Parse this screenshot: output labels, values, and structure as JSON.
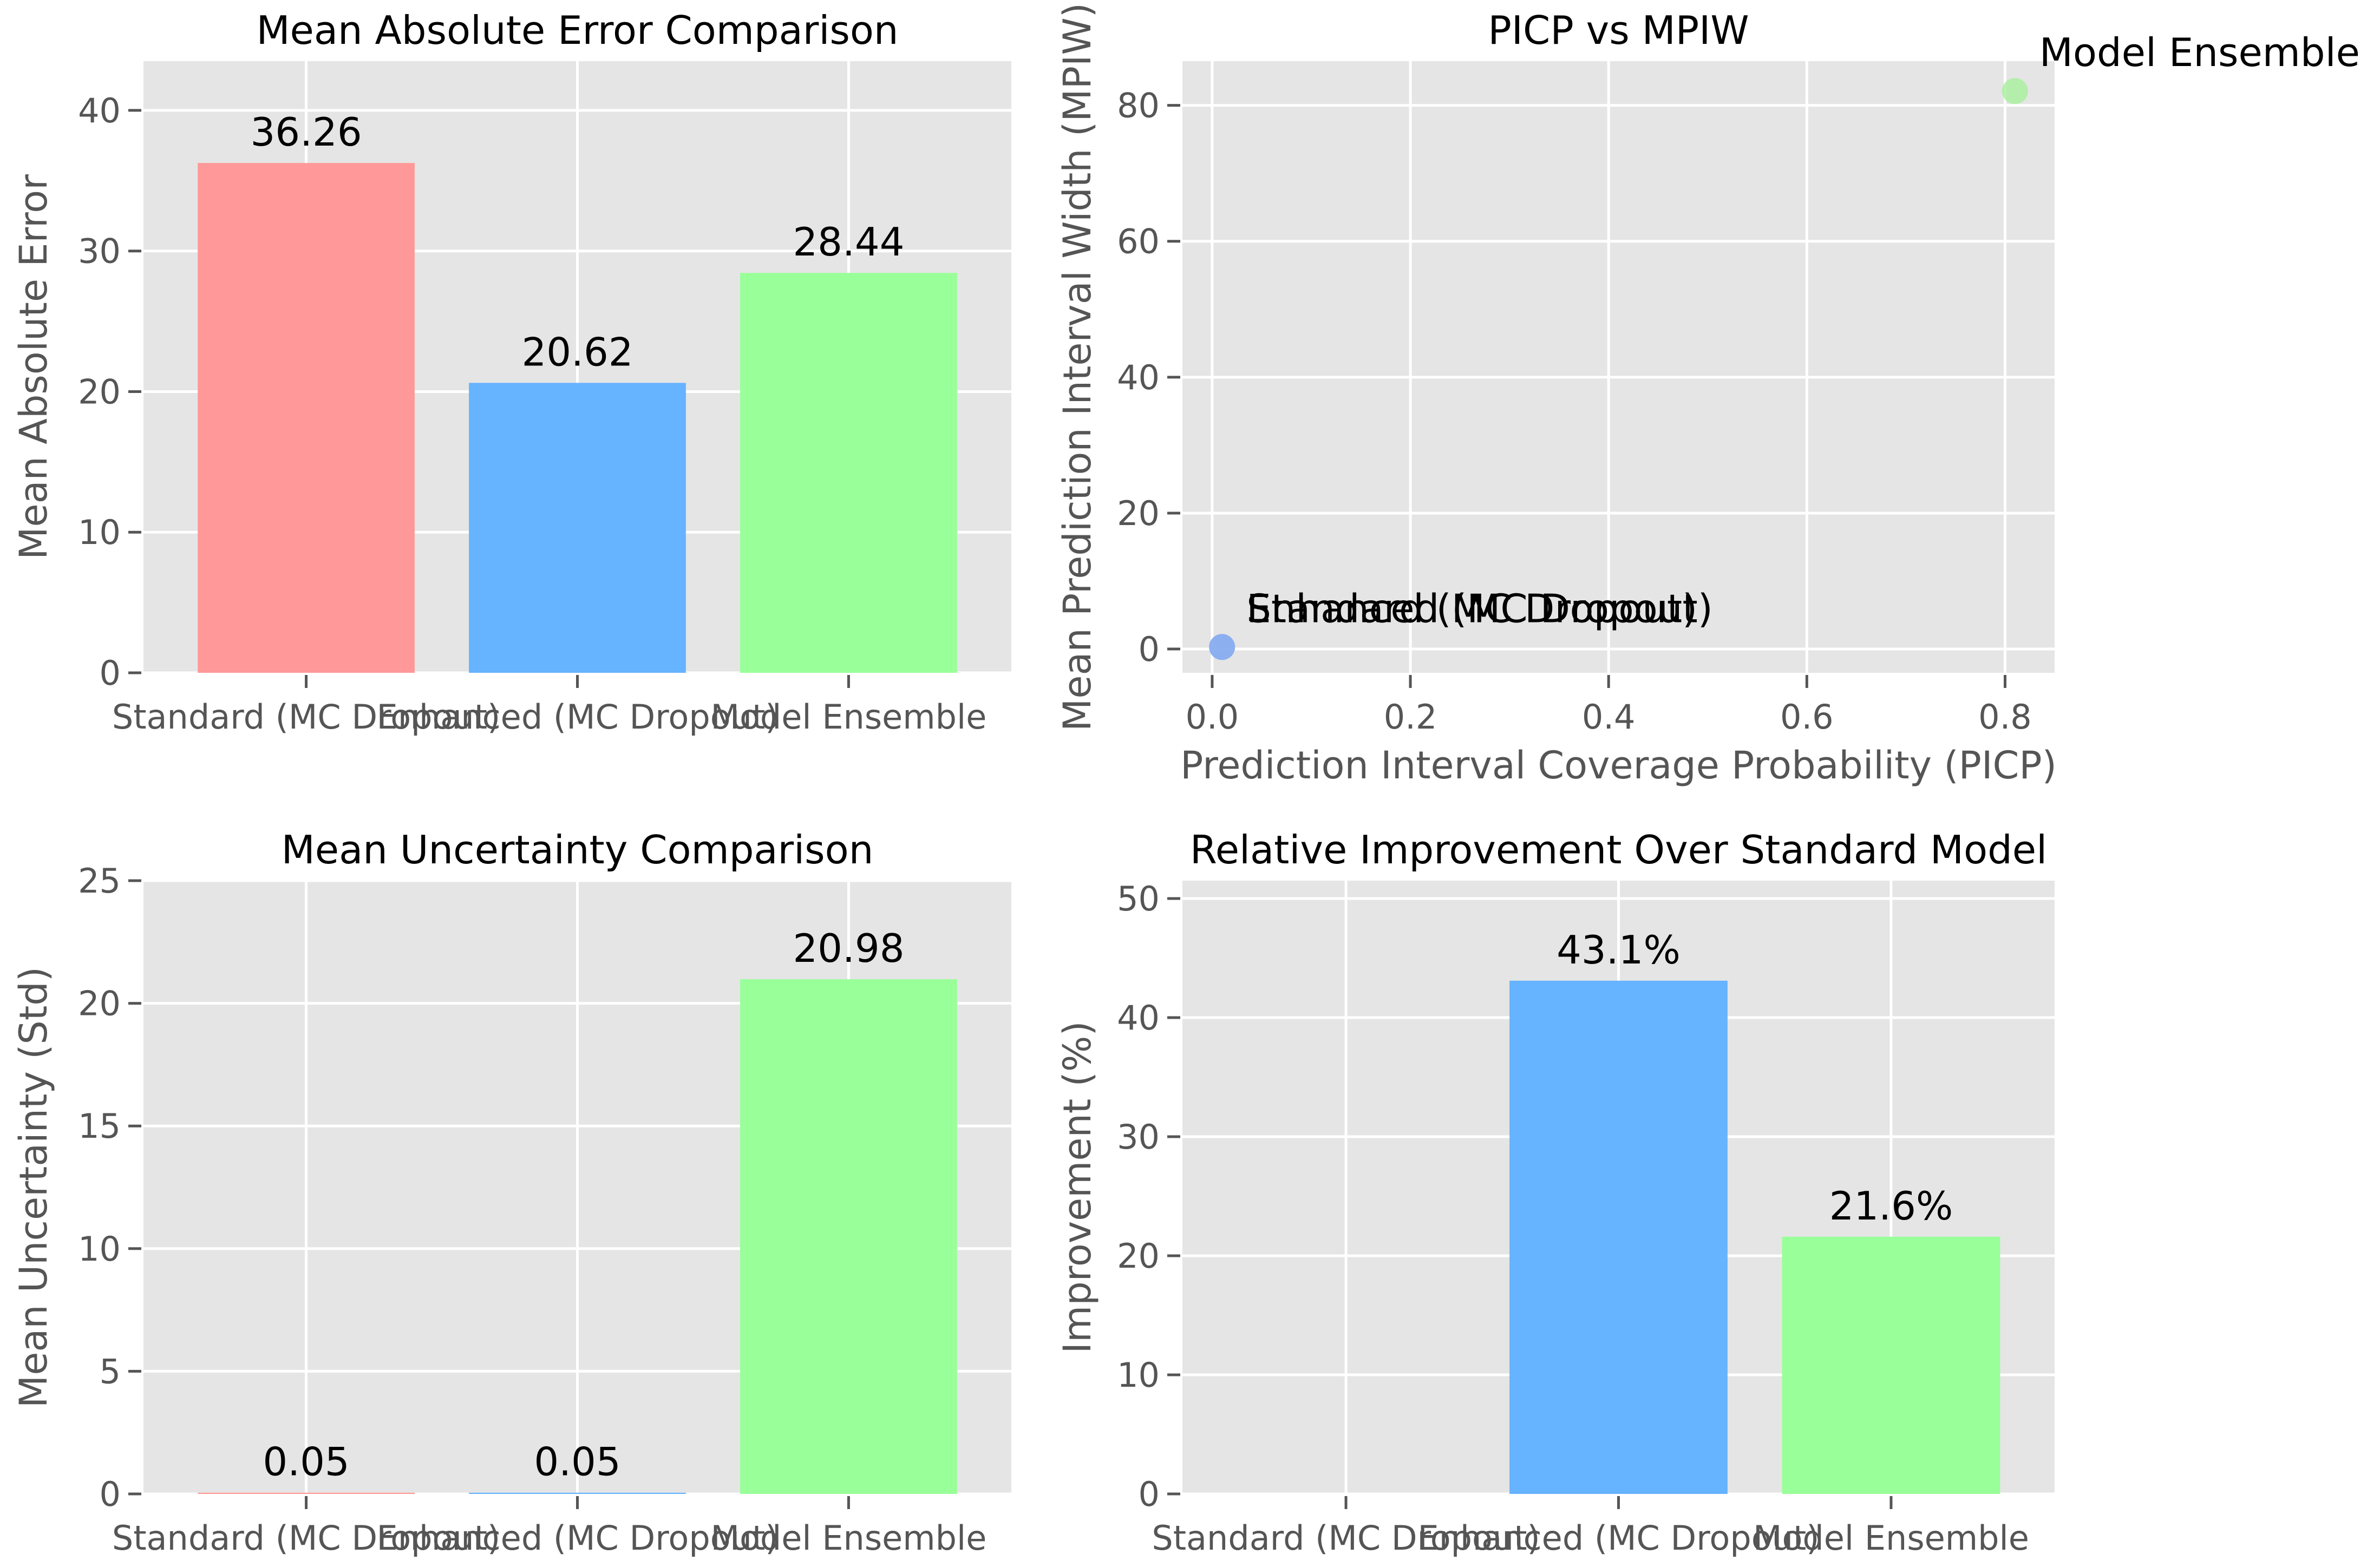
{
  "colors": [
    "#ff9999",
    "#66b3ff",
    "#99ff99"
  ],
  "point_colors": [
    "#8aaef0",
    "#8aaef0",
    "#aaf0a0"
  ],
  "chart_data": [
    {
      "type": "bar",
      "title": "Mean Absolute Error Comparison",
      "xlabel": "",
      "ylabel": "Mean Absolute Error",
      "categories": [
        "Standard (MC Dropout)",
        "Enhanced (MC Dropout)",
        "Model Ensemble"
      ],
      "values": [
        36.26,
        20.62,
        28.44
      ],
      "value_labels": [
        "36.26",
        "20.62",
        "28.44"
      ],
      "ylim": [
        0,
        43.5
      ],
      "yticks": [
        0,
        10,
        20,
        30,
        40
      ],
      "grid": true
    },
    {
      "type": "scatter",
      "title": "PICP vs MPIW",
      "xlabel": "Prediction Interval Coverage Probability (PICP)",
      "ylabel": "Mean Prediction Interval Width (MPIW)",
      "points": [
        {
          "label": "Standard (MC Dropout)",
          "x": 0.01,
          "y": 0.3
        },
        {
          "label": "Enhanced (MC Dropout)",
          "x": 0.01,
          "y": 0.3
        },
        {
          "label": "Model Ensemble",
          "x": 0.81,
          "y": 82.1
        }
      ],
      "xlim": [
        -0.03,
        0.85
      ],
      "ylim": [
        -3.5,
        86.5
      ],
      "xticks": [
        0.0,
        0.2,
        0.4,
        0.6,
        0.8
      ],
      "xtick_labels": [
        "0.0",
        "0.2",
        "0.4",
        "0.6",
        "0.8"
      ],
      "yticks": [
        0,
        20,
        40,
        60,
        80
      ],
      "grid": true
    },
    {
      "type": "bar",
      "title": "Mean Uncertainty Comparison",
      "xlabel": "",
      "ylabel": "Mean Uncertainty (Std)",
      "categories": [
        "Standard (MC Dropout)",
        "Enhanced (MC Dropout)",
        "Model Ensemble"
      ],
      "values": [
        0.05,
        0.05,
        20.98
      ],
      "value_labels": [
        "0.05",
        "0.05",
        "20.98"
      ],
      "ylim": [
        0,
        25
      ],
      "yticks": [
        0,
        5,
        10,
        15,
        20,
        25
      ],
      "grid": true
    },
    {
      "type": "bar",
      "title": "Relative Improvement Over Standard Model",
      "xlabel": "",
      "ylabel": "Improvement (%)",
      "categories": [
        "Standard (MC Dropout)",
        "Enhanced (MC Dropout)",
        "Model Ensemble"
      ],
      "values": [
        0,
        43.1,
        21.6
      ],
      "value_labels": [
        "",
        "43.1%",
        "21.6%"
      ],
      "ylim": [
        0,
        51.5
      ],
      "yticks": [
        0,
        10,
        20,
        30,
        40,
        50
      ],
      "grid": true
    }
  ]
}
